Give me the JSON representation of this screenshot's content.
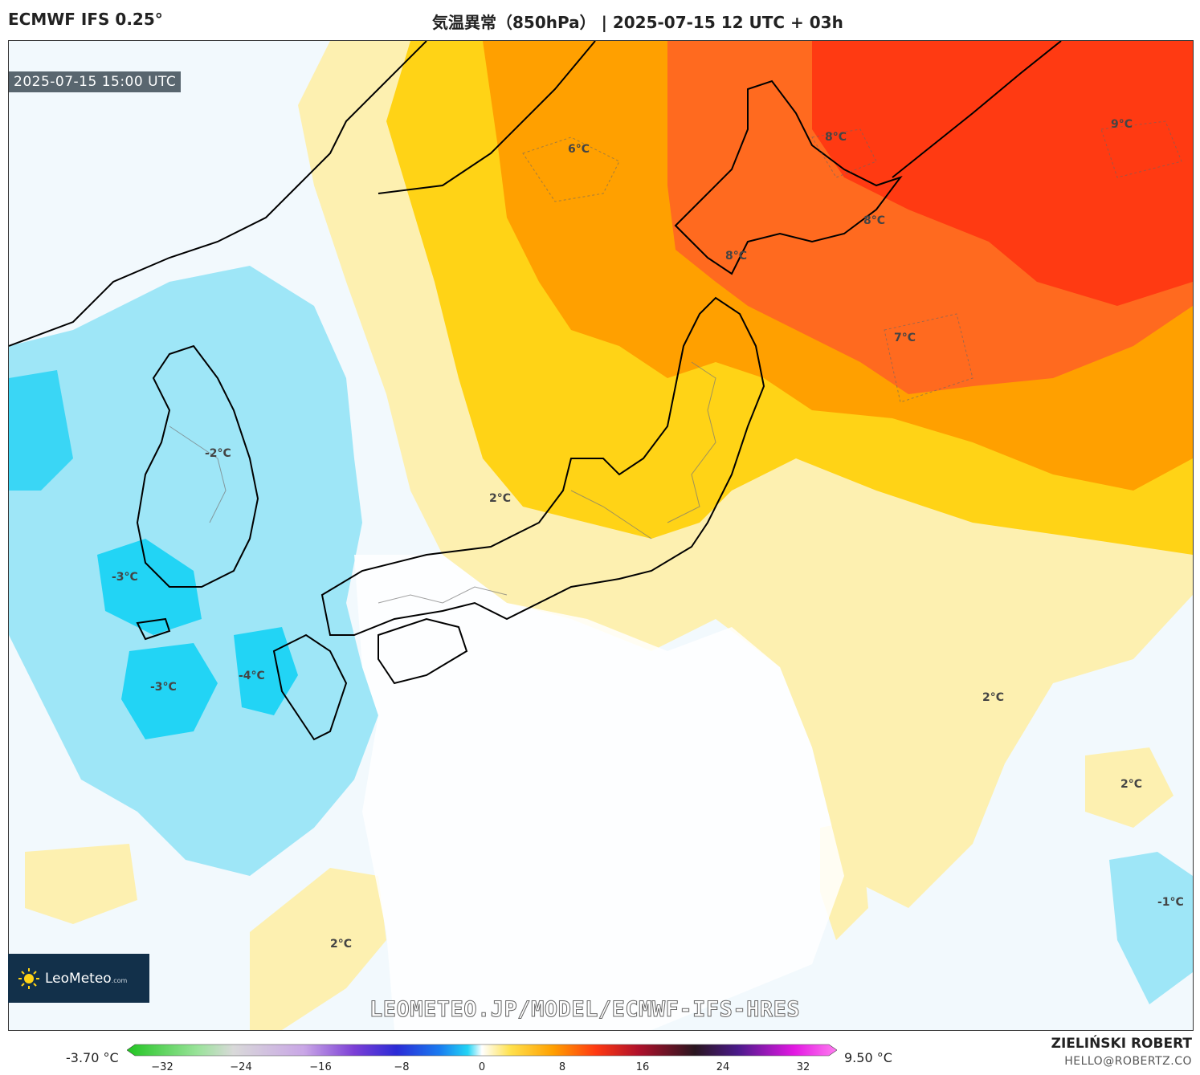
{
  "header": {
    "model": "ECMWF IFS 0.25°",
    "title": "気温異常（850hPa） | 2025-07-15 12 UTC + 03h"
  },
  "valid_time": "2025-07-15 15:00 UTC",
  "watermark": "LEOMETEO.JP/MODEL/ECMWF-IFS-HRES",
  "logo": {
    "name": "LeoMeteo",
    "suffix": ".com"
  },
  "author": {
    "name": "ZIELIŃSKI ROBERT",
    "email": "HELLO@ROBERTZ.CO"
  },
  "colorbar": {
    "min_label": "-3.70 °C",
    "max_label": "9.50 °C",
    "ticks": [
      "−32",
      "−24",
      "−16",
      "−8",
      "0",
      "8",
      "16",
      "24",
      "32"
    ]
  },
  "contour_labels": [
    "6°C",
    "8°C",
    "9°C",
    "8°C",
    "8°C",
    "7°C",
    "-2°C",
    "2°C",
    "-3°C",
    "-3°C",
    "-4°C",
    "2°C",
    "2°C",
    "-1°C",
    "2°C"
  ],
  "colors": {
    "cold_strong": "#22d4f5",
    "cold_mid": "#9ee6f7",
    "cold_weak": "#e3f4fb",
    "neutral": "#ffffff",
    "warm_weak": "#fdf0b0",
    "warm_mid": "#ffd316",
    "warm_orange": "#ffa000",
    "warm_strong": "#ff5a1a",
    "warm_max": "#ff3a12"
  }
}
